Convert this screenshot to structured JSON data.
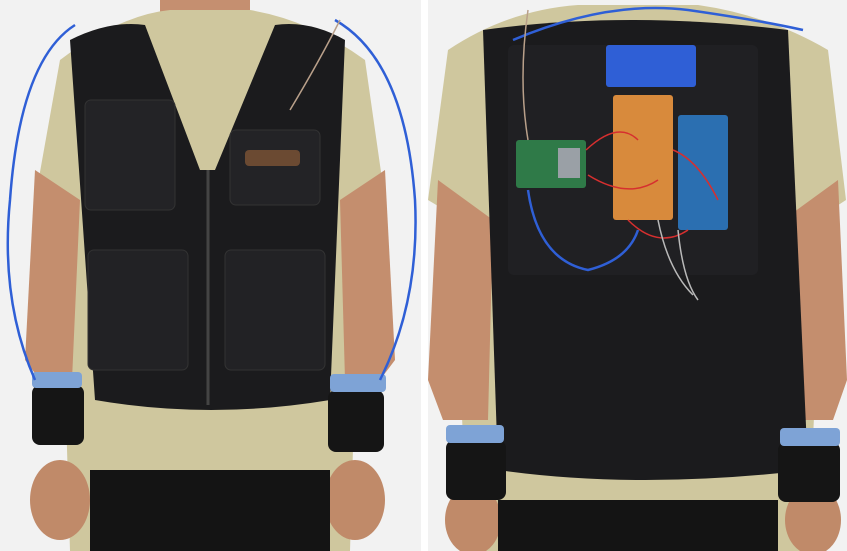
{
  "figure": {
    "panels": [
      {
        "id": "front",
        "view": "front"
      },
      {
        "id": "back",
        "view": "back"
      }
    ],
    "colors": {
      "background": "#f3f3f3",
      "skin": "#c79373",
      "tshirt": "#cfc79e",
      "vest": "#1b1b1d",
      "pants": "#141414",
      "wire_blue": "#2f5fd6",
      "wristband": "#151515",
      "electrode_tape": "#7ea3d6",
      "circuit_board": "#d88a3c",
      "arduino_board": "#2b6fb1",
      "raspberry_pi": "#2f7a48",
      "battery_tape": "#2f5fd6"
    }
  }
}
